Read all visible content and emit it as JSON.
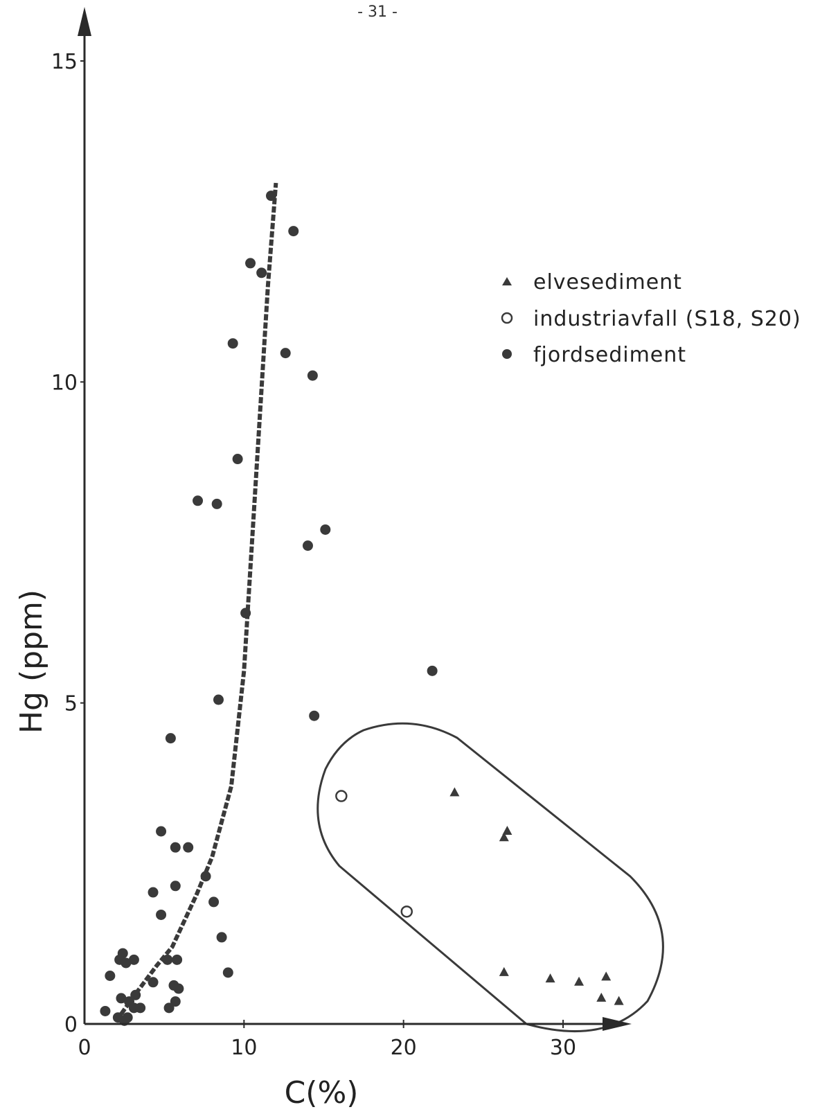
{
  "page_number": "- 31 -",
  "chart_data": {
    "type": "scatter",
    "xlabel": "C(%)",
    "ylabel": "Hg (ppm)",
    "xlim": [
      0,
      33
    ],
    "ylim": [
      0,
      15
    ],
    "xticks": [
      0,
      10,
      20,
      30
    ],
    "yticks": [
      0,
      5,
      10,
      15
    ],
    "xtick_labels": [
      "0",
      "10",
      "20",
      "30"
    ],
    "ytick_labels": [
      "0",
      "5",
      "10",
      "15"
    ],
    "grid": false,
    "legend_position": "top-right",
    "series": [
      {
        "name": "elvesediment",
        "marker": "triangle",
        "color": "#3a3a3a",
        "points": [
          [
            23.2,
            3.6
          ],
          [
            26.3,
            2.9
          ],
          [
            26.5,
            3.0
          ],
          [
            26.3,
            0.8
          ],
          [
            29.2,
            0.7
          ],
          [
            31.0,
            0.65
          ],
          [
            32.4,
            0.4
          ],
          [
            32.7,
            0.73
          ],
          [
            33.5,
            0.35
          ]
        ]
      },
      {
        "name": "industriavfall (S18, S20)",
        "marker": "open-circle",
        "color": "#3a3a3a",
        "points": [
          [
            16.1,
            3.55
          ],
          [
            20.2,
            1.75
          ]
        ]
      },
      {
        "name": "fjordsediment",
        "marker": "filled-circle",
        "color": "#3a3a3a",
        "points": [
          [
            11.7,
            12.9
          ],
          [
            13.1,
            12.35
          ],
          [
            10.4,
            11.85
          ],
          [
            11.1,
            11.7
          ],
          [
            9.3,
            10.6
          ],
          [
            12.6,
            10.45
          ],
          [
            14.3,
            10.1
          ],
          [
            9.6,
            8.8
          ],
          [
            7.1,
            8.15
          ],
          [
            8.3,
            8.1
          ],
          [
            15.1,
            7.7
          ],
          [
            14.0,
            7.45
          ],
          [
            10.1,
            6.4
          ],
          [
            21.8,
            5.5
          ],
          [
            8.4,
            5.05
          ],
          [
            14.4,
            4.8
          ],
          [
            5.4,
            4.45
          ],
          [
            4.8,
            3.0
          ],
          [
            5.7,
            2.75
          ],
          [
            6.5,
            2.75
          ],
          [
            7.6,
            2.3
          ],
          [
            4.3,
            2.05
          ],
          [
            5.7,
            2.15
          ],
          [
            8.1,
            1.9
          ],
          [
            4.8,
            1.7
          ],
          [
            8.6,
            1.35
          ],
          [
            2.4,
            1.1
          ],
          [
            2.2,
            1.0
          ],
          [
            2.6,
            0.95
          ],
          [
            3.1,
            1.0
          ],
          [
            5.2,
            1.0
          ],
          [
            5.8,
            1.0
          ],
          [
            1.6,
            0.75
          ],
          [
            9.0,
            0.8
          ],
          [
            4.3,
            0.65
          ],
          [
            5.6,
            0.6
          ],
          [
            5.9,
            0.55
          ],
          [
            2.3,
            0.4
          ],
          [
            2.8,
            0.35
          ],
          [
            3.2,
            0.45
          ],
          [
            5.7,
            0.35
          ],
          [
            5.3,
            0.25
          ],
          [
            1.3,
            0.2
          ],
          [
            3.1,
            0.25
          ],
          [
            3.5,
            0.25
          ],
          [
            2.1,
            0.1
          ],
          [
            2.5,
            0.05
          ],
          [
            2.7,
            0.1
          ]
        ]
      }
    ],
    "trend_curve": {
      "style": "dashed",
      "points": [
        [
          2.0,
          0.05
        ],
        [
          3.0,
          0.4
        ],
        [
          4.5,
          0.9
        ],
        [
          5.5,
          1.2
        ],
        [
          7.0,
          2.0
        ],
        [
          8.0,
          2.6
        ],
        [
          9.2,
          3.7
        ],
        [
          10.0,
          5.5
        ],
        [
          10.5,
          7.5
        ],
        [
          11.0,
          9.5
        ],
        [
          11.5,
          11.5
        ],
        [
          12.0,
          13.1
        ]
      ]
    },
    "enclosure_around": [
      "elvesediment",
      "industriavfall (S18, S20)"
    ]
  }
}
